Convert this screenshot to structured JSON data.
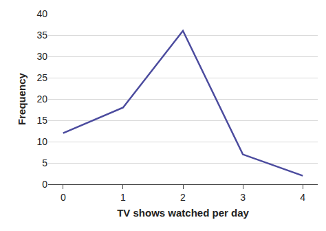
{
  "chart_data": {
    "type": "line",
    "x_label": "TV shows watched per day",
    "y_label": "Frequency",
    "x": [
      0,
      1,
      2,
      3,
      4
    ],
    "values": [
      12,
      18,
      36,
      7,
      2
    ],
    "color": "#4b4b9e",
    "xlim": [
      -0.25,
      4.25
    ],
    "xticks": [
      0,
      1,
      2,
      3,
      4
    ],
    "ylim": [
      0,
      40
    ],
    "yticks": [
      0,
      5,
      10,
      15,
      20,
      25,
      30,
      35,
      40
    ],
    "grid": true
  }
}
